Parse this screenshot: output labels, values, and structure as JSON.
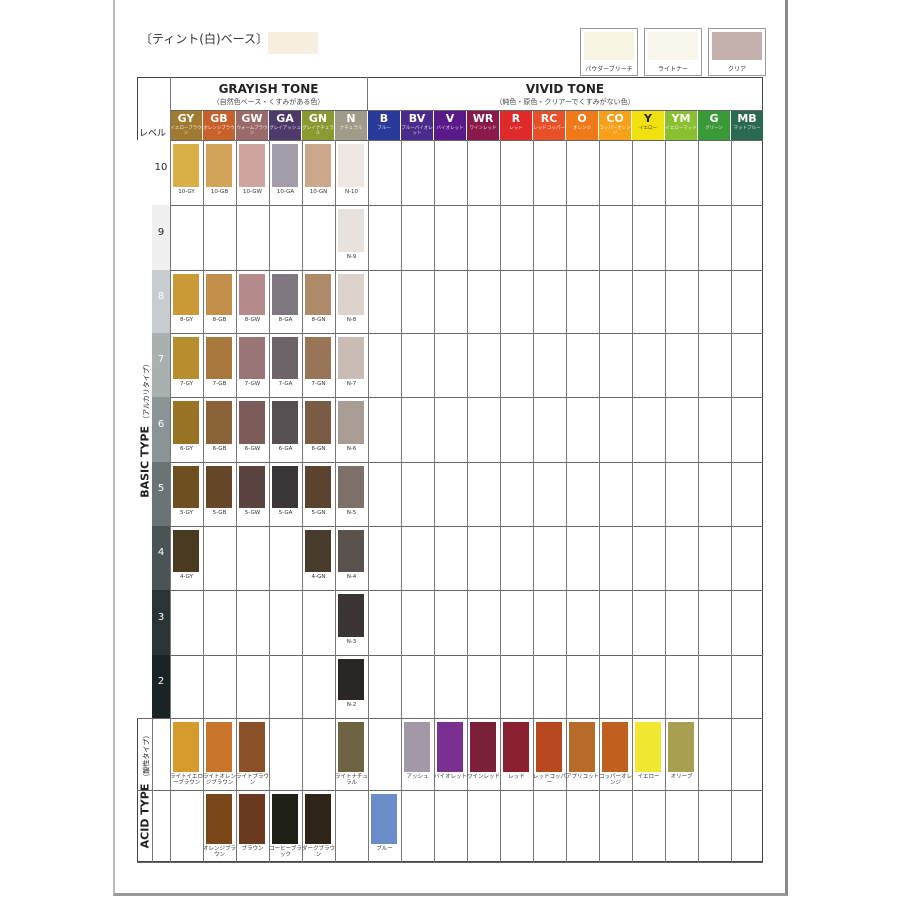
{
  "header": {
    "base_label": "〔ティント(白)ベース〕",
    "base_color": "#f6efdf"
  },
  "reference_swatches": [
    {
      "label": "パウダーブリーチ",
      "color": "#f8f4e4"
    },
    {
      "label": "ライトナー",
      "color": "#f8f6ea"
    },
    {
      "label": "クリア",
      "color": "#c4b0ac"
    }
  ],
  "grayish": {
    "title": "GRAYISH TONE",
    "subtitle": "（自然色ベース・くすみがある色）"
  },
  "vivid": {
    "title": "VIVID TONE",
    "subtitle": "（純色・原色・クリアーでくすみがない色）"
  },
  "level_header": "レベル",
  "columns": [
    {
      "code": "GY",
      "jp": "イエローブラウン",
      "color": "#a07a30"
    },
    {
      "code": "GB",
      "jp": "オレンジブラウン",
      "color": "#c8602a"
    },
    {
      "code": "GW",
      "jp": "ウォームブラウン",
      "color": "#9a6a6a"
    },
    {
      "code": "GA",
      "jp": "グレイアッシュ",
      "color": "#4e3a6a"
    },
    {
      "code": "GN",
      "jp": "グレイナチュラル",
      "color": "#8a9a30"
    },
    {
      "code": "N",
      "jp": "ナチュラル",
      "color": "#a09a88"
    },
    {
      "code": "B",
      "jp": "ブルー",
      "color": "#2a3a9a"
    },
    {
      "code": "BV",
      "jp": "ブルーバイオレット",
      "color": "#4a2a8a"
    },
    {
      "code": "V",
      "jp": "バイオレット",
      "color": "#5a1a8a"
    },
    {
      "code": "WR",
      "jp": "ワインレッド",
      "color": "#8a1a4a"
    },
    {
      "code": "R",
      "jp": "レッド",
      "color": "#e02a2a"
    },
    {
      "code": "RC",
      "jp": "レッドコッパー",
      "color": "#e8502a"
    },
    {
      "code": "O",
      "jp": "オレンジ",
      "color": "#f07a1a"
    },
    {
      "code": "CO",
      "jp": "コッパーオレンジ",
      "color": "#f8a018"
    },
    {
      "code": "Y",
      "jp": "イエロー",
      "color": "#f0e010"
    },
    {
      "code": "YM",
      "jp": "イエローマット",
      "color": "#8ac030"
    },
    {
      "code": "G",
      "jp": "グリーン",
      "color": "#3a9a3a"
    },
    {
      "code": "MB",
      "jp": "マットブルー",
      "color": "#2a6a50"
    }
  ],
  "basic_type": {
    "label": "BASIC TYPE",
    "sub": "（アルカリタイプ）"
  },
  "acid_type": {
    "label": "ACID TYPE",
    "sub": "（酸性タイプ）"
  },
  "basic_rows": [
    {
      "level": "10",
      "shade": "#ffffff",
      "swatches": {
        "GY": [
          "10-GY",
          "#d9b048"
        ],
        "GB": [
          "10-GB",
          "#d2a45a"
        ],
        "GW": [
          "10-GW",
          "#cfa3a0"
        ],
        "GA": [
          "10-GA",
          "#a29ca8"
        ],
        "GN": [
          "10-GN",
          "#c9a98a"
        ],
        "N": [
          "N-10",
          "#efe8e2"
        ]
      }
    },
    {
      "level": "9",
      "shade": "#f0f0f0",
      "swatches": {
        "N": [
          "N-9",
          "#e8e2de"
        ]
      }
    },
    {
      "level": "8",
      "shade": "#c8ccd0",
      "swatches": {
        "GY": [
          "8-GY",
          "#c99a35"
        ],
        "GB": [
          "8-GB",
          "#c28f4a"
        ],
        "GW": [
          "8-GW",
          "#b48a8a"
        ],
        "GA": [
          "8-GA",
          "#7f7780"
        ],
        "GN": [
          "8-GN",
          "#ae8a68"
        ],
        "N": [
          "N-8",
          "#ddd3cc"
        ]
      }
    },
    {
      "level": "7",
      "shade": "#a8b0b0",
      "swatches": {
        "GY": [
          "7-GY",
          "#b88d2e"
        ],
        "GB": [
          "7-GB",
          "#a9783f"
        ],
        "GW": [
          "7-GW",
          "#9a7575"
        ],
        "GA": [
          "7-GA",
          "#6c6468"
        ],
        "GN": [
          "7-GN",
          "#977556"
        ],
        "N": [
          "N-7",
          "#c9bcb4"
        ]
      }
    },
    {
      "level": "6",
      "shade": "#8a9494",
      "swatches": {
        "GY": [
          "6-GY",
          "#987225"
        ],
        "GB": [
          "6-GB",
          "#8a6236"
        ],
        "GW": [
          "6-GW",
          "#7c5c58"
        ],
        "GA": [
          "6-GA",
          "#565052"
        ],
        "GN": [
          "6-GN",
          "#7a5c44"
        ],
        "N": [
          "N-6",
          "#a89c94"
        ]
      }
    },
    {
      "level": "5",
      "shade": "#6a7474",
      "swatches": {
        "GY": [
          "5-GY",
          "#6e5020"
        ],
        "GB": [
          "5-GB",
          "#654628"
        ],
        "GW": [
          "5-GW",
          "#5a4240"
        ],
        "GA": [
          "5-GA",
          "#3a3638"
        ],
        "GN": [
          "5-GN",
          "#5a4430"
        ],
        "N": [
          "N-5",
          "#7c7068"
        ]
      }
    },
    {
      "level": "4",
      "shade": "#4a5454",
      "swatches": {
        "GY": [
          "4-GY",
          "#4a3a22"
        ],
        "GN": [
          "4-GN",
          "#4a3c2c"
        ],
        "N": [
          "N-4",
          "#5a524c"
        ]
      }
    },
    {
      "level": "3",
      "shade": "#2a3434",
      "swatches": {
        "N": [
          "N-3",
          "#3a3532"
        ]
      }
    },
    {
      "level": "2",
      "shade": "#1a2424",
      "swatches": {
        "N": [
          "N-2",
          "#2a2624"
        ]
      }
    }
  ],
  "acid_rows": [
    {
      "swatches": {
        "GY": [
          "ライトイエローブラウン",
          "#d49a2c"
        ],
        "GB": [
          "ライトオレンジブラウン",
          "#c8742a"
        ],
        "GW": [
          "ライトブラウン",
          "#8a5028"
        ],
        "N": [
          "ライトナチュラル",
          "#6e6444"
        ],
        "BV": [
          "アッシュ",
          "#a398a8"
        ],
        "V": [
          "バイオレット",
          "#7a3090"
        ],
        "WR": [
          "ワインレッド",
          "#7a2038"
        ],
        "R": [
          "レッド",
          "#8a2030"
        ],
        "RC": [
          "レッドコッパー",
          "#b8481e"
        ],
        "O": [
          "アプリコット",
          "#b86a28"
        ],
        "CO": [
          "コッパーオレンジ",
          "#c0601e"
        ],
        "Y": [
          "イエロー",
          "#f0e830"
        ],
        "YM": [
          "オリーブ",
          "#a8a050"
        ]
      }
    },
    {
      "swatches": {
        "GB": [
          "オレンジブラウン",
          "#7a4818"
        ],
        "GW": [
          "ブラウン",
          "#6a3a20"
        ],
        "GA": [
          "コーヒーブラック",
          "#1e2018"
        ],
        "GN": [
          "ダークブラウン",
          "#2e2418"
        ],
        "B": [
          "ブルー",
          "#6a8cc8"
        ]
      }
    }
  ]
}
